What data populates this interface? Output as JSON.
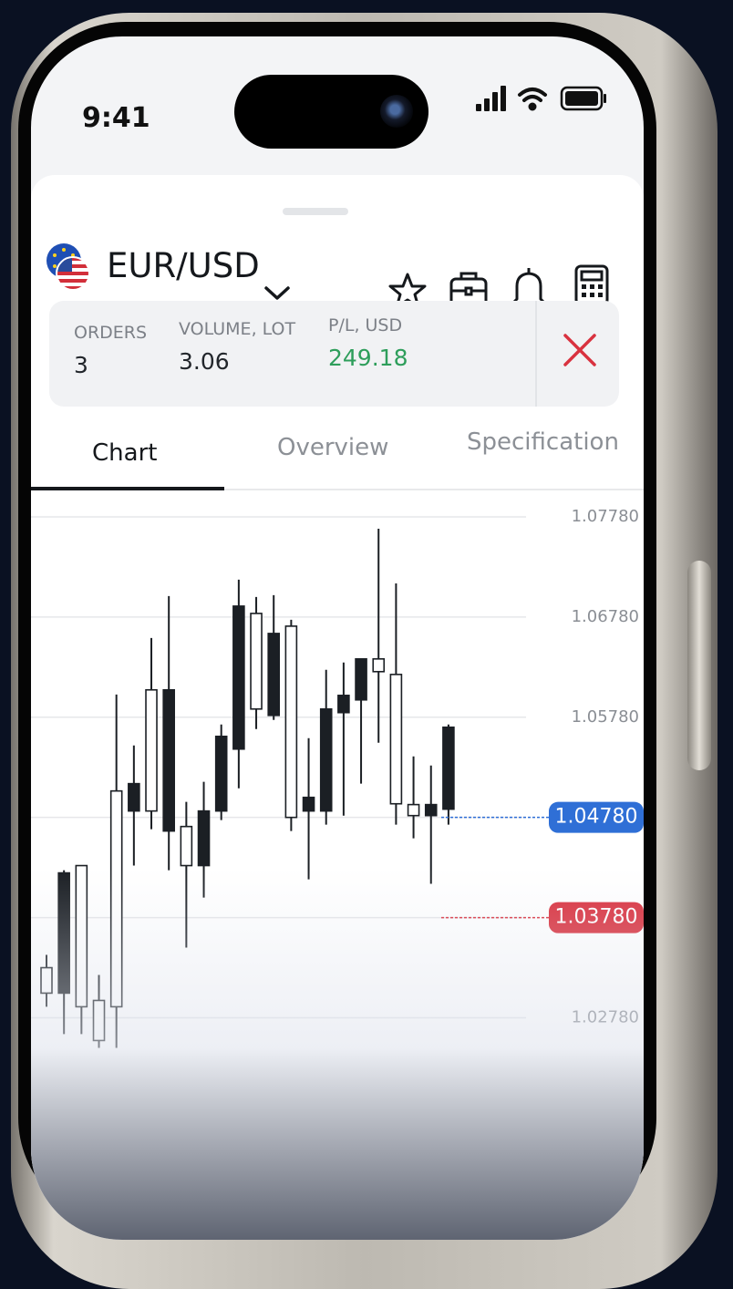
{
  "status_bar": {
    "time": "9:41"
  },
  "header": {
    "symbol": "EUR/USD"
  },
  "stats": [
    {
      "label": "ORDERS",
      "value": 3
    },
    {
      "label": "VOLUME, LOT",
      "value": 3.06
    },
    {
      "label": "P/L, USD",
      "value": 249.18
    }
  ],
  "tabs": [
    "Chart",
    "Overview",
    "Specification"
  ],
  "chart_data": {
    "type": "candlestick",
    "series": {
      "open": [
        1.03026,
        1.04226,
        1.0289,
        1.02553,
        1.0289,
        1.05117,
        1.04844,
        1.06053,
        1.04299,
        1.04844,
        1.05589,
        1.06889,
        1.05862,
        1.06616,
        1.0478,
        1.0498,
        1.05862,
        1.05998,
        1.06362,
        1.06235,
        1.04916,
        1.04798,
        1.04908,
        1.0568
      ],
      "high": [
        1.03408,
        1.04253,
        1.04299,
        1.03208,
        1.06007,
        1.05498,
        1.06571,
        1.06989,
        1.04935,
        1.05135,
        1.05707,
        1.07153,
        1.0698,
        1.06998,
        1.06753,
        1.05571,
        1.06253,
        1.06326,
        1.06362,
        1.07662,
        1.07116,
        1.05389,
        1.05298,
        1.05707
      ],
      "low": [
        1.0289,
        1.02617,
        1.02617,
        1.0248,
        1.0248,
        1.04299,
        1.04662,
        1.04253,
        1.0348,
        1.0398,
        1.04753,
        1.05071,
        1.05662,
        1.05753,
        1.04644,
        1.04162,
        1.04708,
        1.04798,
        1.05117,
        1.05526,
        1.04708,
        1.04571,
        1.04117,
        1.04708
      ],
      "close": [
        1.0328,
        1.03026,
        1.04299,
        1.02953,
        1.05044,
        1.04844,
        1.06053,
        1.04644,
        1.04689,
        1.04299,
        1.04844,
        1.05462,
        1.06816,
        1.05798,
        1.06689,
        1.04844,
        1.04844,
        1.05826,
        1.05953,
        1.06362,
        1.06207,
        1.04908,
        1.04798,
        1.04862
      ]
    },
    "up_color": "#ffffff",
    "down_color": "#1b1f24",
    "ylim": [
      1.0202,
      1.0798
    ],
    "yticks": [
      {
        "value": 1.0778,
        "label": "1.07780"
      },
      {
        "value": 1.0678,
        "label": "1.06780"
      },
      {
        "value": 1.0578,
        "label": "1.05780"
      },
      {
        "value": 1.0478,
        "label": "1.04780"
      },
      {
        "value": 1.0378,
        "label": "1.03780"
      },
      {
        "value": 1.0278,
        "label": "1.02780"
      }
    ],
    "grid": true,
    "price_labels": [
      {
        "value": 1.0478,
        "label": "1.04780",
        "color": "#2f6fd6"
      },
      {
        "value": 1.0378,
        "label": "1.03780",
        "color": "#d9323f"
      }
    ]
  }
}
